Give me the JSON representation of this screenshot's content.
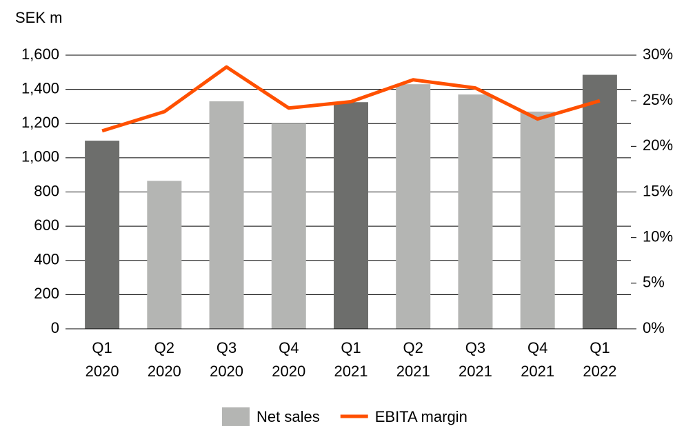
{
  "chart_data": {
    "type": "bar",
    "y_label": "SEK m",
    "categories": [
      "Q1 2020",
      "Q2 2020",
      "Q3 2020",
      "Q4 2020",
      "Q1 2021",
      "Q2 2021",
      "Q3 2021",
      "Q4 2021",
      "Q1 2022"
    ],
    "series": [
      {
        "name": "Net sales",
        "type": "bar",
        "color": "#b4b5b3",
        "colors": [
          "#6d6e6c",
          "#b4b5b3",
          "#b4b5b3",
          "#b4b5b3",
          "#6d6e6c",
          "#b4b5b3",
          "#b4b5b3",
          "#b4b5b3",
          "#6d6e6c"
        ],
        "values": [
          1100,
          865,
          1330,
          1200,
          1325,
          1430,
          1370,
          1270,
          1485
        ]
      },
      {
        "name": "EBITA margin",
        "type": "line",
        "axis": "y2",
        "color": "#ff5000",
        "values": [
          21.7,
          23.8,
          28.7,
          24.2,
          24.9,
          27.3,
          26.4,
          23.0,
          25.0
        ]
      }
    ],
    "ylim": [
      0,
      1600
    ],
    "yticks": [
      0,
      200,
      400,
      600,
      800,
      {
        "value": 1000,
        "label": "1,000"
      },
      {
        "value": 1200,
        "label": "1,200"
      },
      {
        "value": 1400,
        "label": "1,400"
      },
      {
        "value": 1600,
        "label": "1,600"
      }
    ],
    "y2lim": [
      0,
      30
    ],
    "y2ticks": [
      {
        "value": 0,
        "label": "0%"
      },
      {
        "value": 5,
        "label": "5%"
      },
      {
        "value": 10,
        "label": "10%"
      },
      {
        "value": 15,
        "label": "15%"
      },
      {
        "value": 20,
        "label": "20%"
      },
      {
        "value": 25,
        "label": "25%"
      },
      {
        "value": 30,
        "label": "30%"
      }
    ],
    "grid": true,
    "legend": "bottom"
  }
}
